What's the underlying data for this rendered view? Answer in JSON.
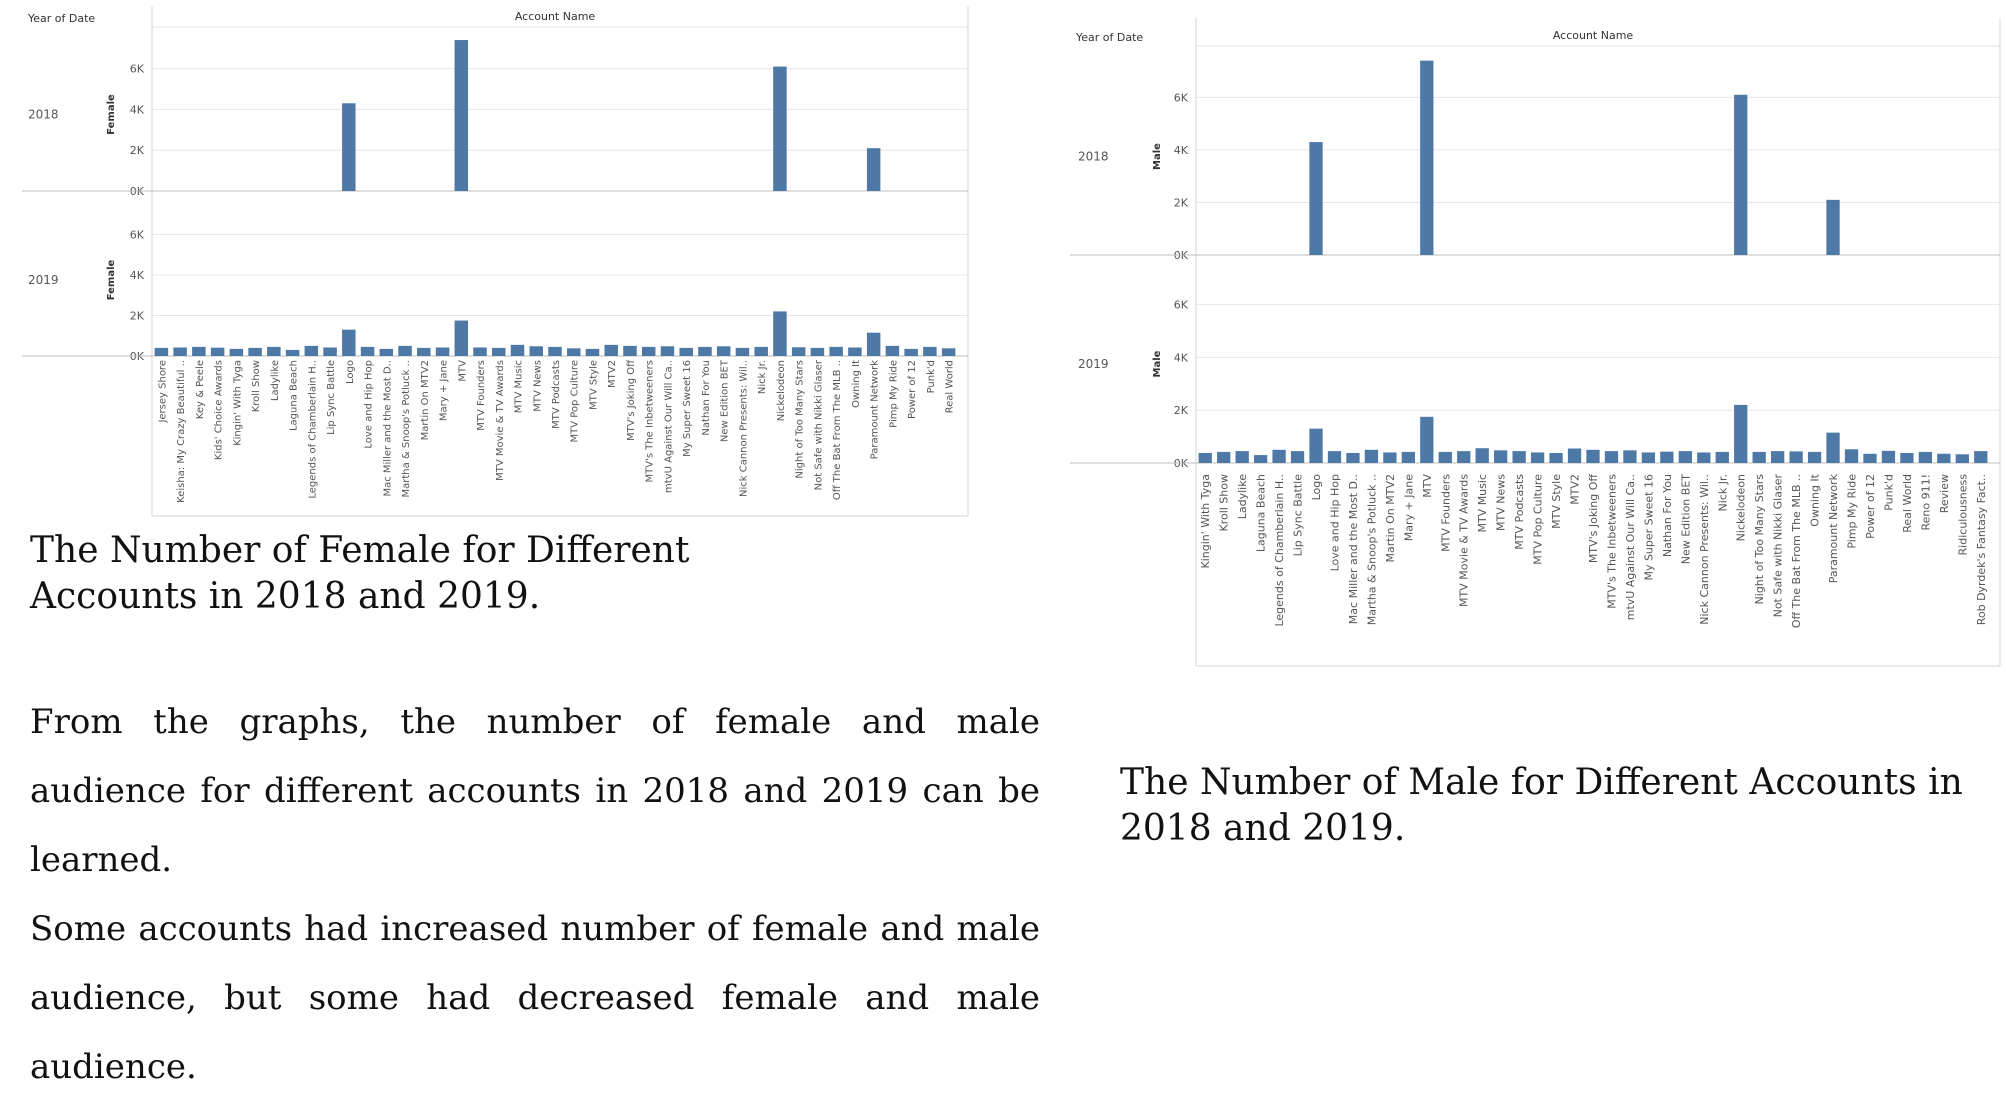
{
  "charts": [
    {
      "id": "female",
      "header_left": "Year of Date",
      "header_center": "Account Name",
      "measure": "Female",
      "rows": [
        "2018",
        "2019"
      ],
      "ticks": [
        "0K",
        "2K",
        "4K",
        "6K"
      ],
      "caption": "The Number of Female for Different Accounts in 2018 and 2019."
    },
    {
      "id": "male",
      "header_left": "Year of Date",
      "header_center": "Account Name",
      "measure": "Male",
      "rows": [
        "2018",
        "2019"
      ],
      "ticks": [
        "0K",
        "2K",
        "4K",
        "6K"
      ],
      "caption": "The Number of Male for Different Accounts in 2018 and 2019."
    }
  ],
  "body": {
    "p1": "From the graphs, the number of female and male audience for different accounts in 2018 and 2019 can be learned.",
    "p2": "Some accounts had increased number of female and male audience, but some had decreased female and male audience."
  },
  "colors": {
    "bar": "#4e79a7",
    "grid": "#e6e6e6",
    "axis": "#bdbdbd",
    "text": "#555555"
  },
  "chart_data": [
    {
      "type": "bar",
      "title": "The Number of Female for Different Accounts in 2018 and 2019.",
      "xlabel": "Account Name",
      "ylabel": "Female",
      "ylim": [
        0,
        7500
      ],
      "grid": true,
      "categories": [
        "Jersey Shore",
        "Keisha: My Crazy Beautiful ..",
        "Key & Peele",
        "Kids' Choice Awards",
        "Kingin' With Tyga",
        "Kroll Show",
        "Ladylike",
        "Laguna Beach",
        "Legends of Chamberlain H..",
        "Lip Sync Battle",
        "Logo",
        "Love and Hip Hop",
        "Mac Miller and the Most D..",
        "Martha & Snoop's Potluck ..",
        "Martin On MTV2",
        "Mary + Jane",
        "MTV",
        "MTV Founders",
        "MTV Movie & TV Awards",
        "MTV Music",
        "MTV News",
        "MTV Podcasts",
        "MTV Pop Culture",
        "MTV Style",
        "MTV2",
        "MTV's Joking Off",
        "MTV's The Inbetweeners",
        "mtvU Against Our Will Ca..",
        "My Super Sweet 16",
        "Nathan For You",
        "New Edition BET",
        "Nick Cannon Presents: Wil..",
        "Nick Jr.",
        "Nickelodeon",
        "Night of Too Many Stars",
        "Not Safe with Nikki Glaser",
        "Off The Bat From The MLB ..",
        "Owning It",
        "Paramount Network",
        "Pimp My Ride",
        "Power of 12",
        "Punk'd",
        "Real World"
      ],
      "series": [
        {
          "name": "2018",
          "values": [
            0,
            0,
            0,
            0,
            0,
            0,
            0,
            0,
            0,
            0,
            4300,
            0,
            0,
            0,
            0,
            0,
            7400,
            0,
            0,
            0,
            0,
            0,
            0,
            0,
            0,
            0,
            0,
            0,
            0,
            0,
            0,
            0,
            0,
            6100,
            0,
            0,
            0,
            0,
            2100,
            0,
            0,
            0,
            0
          ]
        },
        {
          "name": "2019",
          "values": [
            400,
            420,
            450,
            410,
            350,
            400,
            450,
            300,
            500,
            420,
            1300,
            450,
            350,
            500,
            400,
            420,
            1750,
            420,
            400,
            550,
            480,
            450,
            380,
            350,
            550,
            500,
            450,
            480,
            400,
            450,
            480,
            400,
            450,
            2200,
            430,
            400,
            450,
            420,
            1150,
            500,
            350,
            450,
            380
          ]
        }
      ]
    },
    {
      "type": "bar",
      "title": "The Number of Male for Different Accounts in 2018 and 2019.",
      "xlabel": "Account Name",
      "ylabel": "Male",
      "ylim": [
        0,
        7500
      ],
      "grid": true,
      "categories": [
        "Kingin' With Tyga",
        "Kroll Show",
        "Ladylike",
        "Laguna Beach",
        "Legends of Chamberlain H..",
        "Lip Sync Battle",
        "Logo",
        "Love and Hip Hop",
        "Mac Miller and the Most D..",
        "Martha & Snoop's Potluck ..",
        "Martin On MTV2",
        "Mary + Jane",
        "MTV",
        "MTV Founders",
        "MTV Movie & TV Awards",
        "MTV Music",
        "MTV News",
        "MTV Podcasts",
        "MTV Pop Culture",
        "MTV Style",
        "MTV2",
        "MTV's Joking Off",
        "MTV's The Inbetweeners",
        "mtvU Against Our Will Ca..",
        "My Super Sweet 16",
        "Nathan For You",
        "New Edition BET",
        "Nick Cannon Presents: Wil..",
        "Nick Jr.",
        "Nickelodeon",
        "Night of Too Many Stars",
        "Not Safe with Nikki Glaser",
        "Off The Bat From The MLB ..",
        "Owning It",
        "Paramount Network",
        "Pimp My Ride",
        "Power of 12",
        "Punk'd",
        "Real World",
        "Reno 911!",
        "Review",
        "Ridiculousness",
        "Rob Dyrdek's Fantasy Fact.."
      ],
      "series": [
        {
          "name": "2018",
          "values": [
            0,
            0,
            0,
            0,
            0,
            0,
            4300,
            0,
            0,
            0,
            0,
            0,
            7400,
            0,
            0,
            0,
            0,
            0,
            0,
            0,
            0,
            0,
            0,
            0,
            0,
            0,
            0,
            0,
            0,
            6100,
            0,
            0,
            0,
            0,
            2100,
            0,
            0,
            0,
            0,
            0,
            0,
            0,
            0
          ]
        },
        {
          "name": "2019",
          "values": [
            380,
            420,
            450,
            300,
            500,
            450,
            1300,
            450,
            380,
            500,
            400,
            420,
            1750,
            420,
            450,
            560,
            480,
            450,
            400,
            380,
            550,
            500,
            450,
            480,
            400,
            430,
            450,
            400,
            420,
            2200,
            420,
            450,
            440,
            420,
            1150,
            520,
            350,
            460,
            380,
            420,
            350,
            330,
            450
          ]
        }
      ]
    }
  ]
}
